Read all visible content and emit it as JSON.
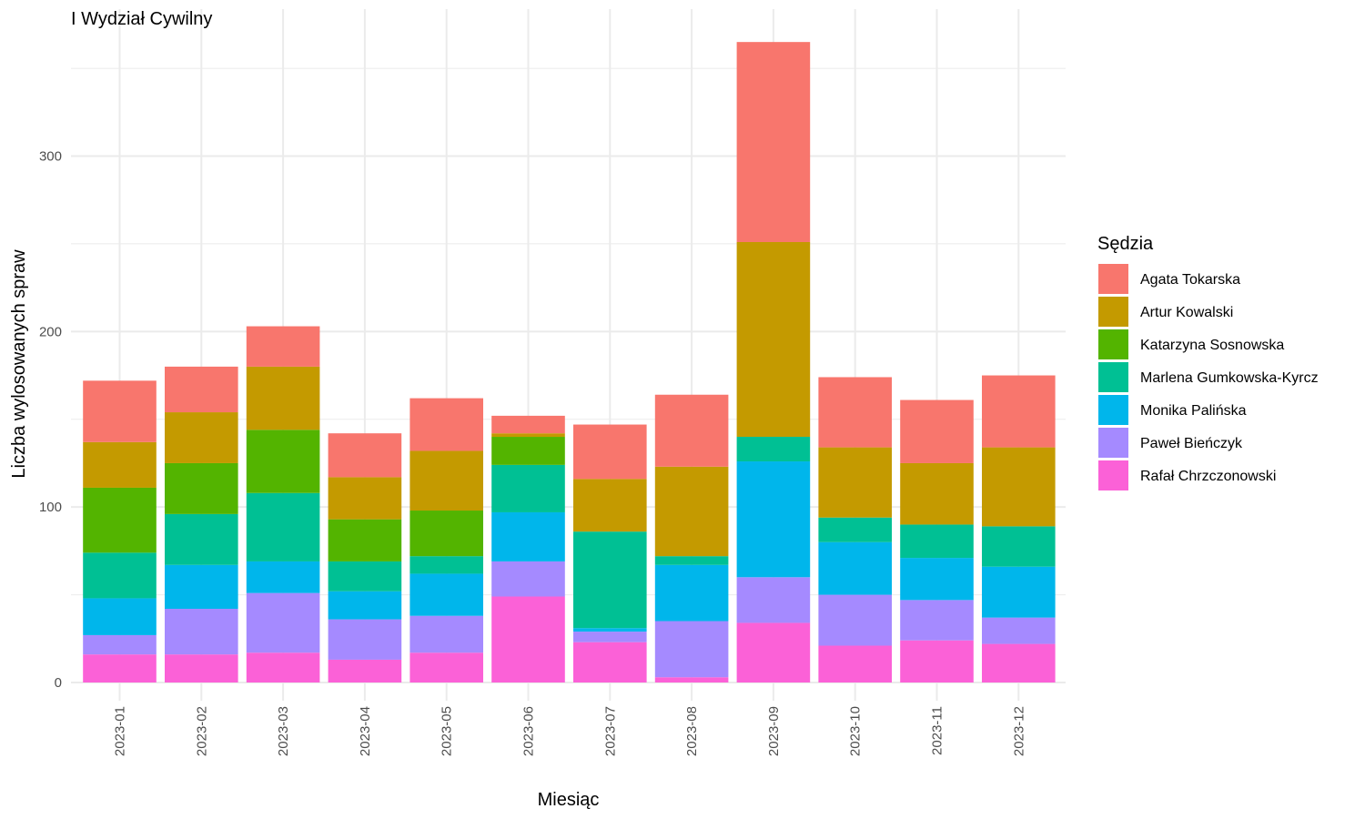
{
  "chart_data": {
    "type": "bar",
    "stacked": true,
    "title": "I Wydział Cywilny",
    "xlabel": "Miesiąc",
    "ylabel": "Liczba wylosowanych spraw",
    "ylim": [
      0,
      380
    ],
    "y_ticks": [
      0,
      100,
      200,
      300
    ],
    "grid": true,
    "legend_title": "Sędzia",
    "legend_position": "right",
    "categories": [
      "2023-01",
      "2023-02",
      "2023-03",
      "2023-04",
      "2023-05",
      "2023-06",
      "2023-07",
      "2023-08",
      "2023-09",
      "2023-10",
      "2023-11",
      "2023-12"
    ],
    "series": [
      {
        "name": "Agata Tokarska",
        "color": "#F8766D",
        "values": [
          35,
          26,
          23,
          25,
          30,
          10,
          31,
          41,
          114,
          40,
          36,
          41
        ]
      },
      {
        "name": "Artur Kowalski",
        "color": "#C49A00",
        "values": [
          26,
          29,
          36,
          24,
          34,
          2,
          30,
          51,
          111,
          40,
          35,
          45
        ]
      },
      {
        "name": "Katarzyna Sosnowska",
        "color": "#53B400",
        "values": [
          37,
          29,
          36,
          24,
          26,
          16,
          0,
          0,
          0,
          0,
          0,
          0
        ]
      },
      {
        "name": "Marlena Gumkowska-Kyrcz",
        "color": "#00C094",
        "values": [
          26,
          29,
          39,
          17,
          10,
          27,
          55,
          5,
          14,
          14,
          19,
          23
        ]
      },
      {
        "name": "Monika Palińska",
        "color": "#00B6EB",
        "values": [
          21,
          25,
          18,
          16,
          24,
          28,
          2,
          32,
          66,
          30,
          24,
          29
        ]
      },
      {
        "name": "Paweł Bieńczyk",
        "color": "#A58AFF",
        "values": [
          11,
          26,
          34,
          23,
          21,
          20,
          6,
          32,
          26,
          29,
          23,
          15
        ]
      },
      {
        "name": "Rafał Chrzczonowski",
        "color": "#FB61D7",
        "values": [
          16,
          16,
          17,
          13,
          17,
          49,
          23,
          3,
          34,
          21,
          24,
          22
        ]
      }
    ]
  }
}
